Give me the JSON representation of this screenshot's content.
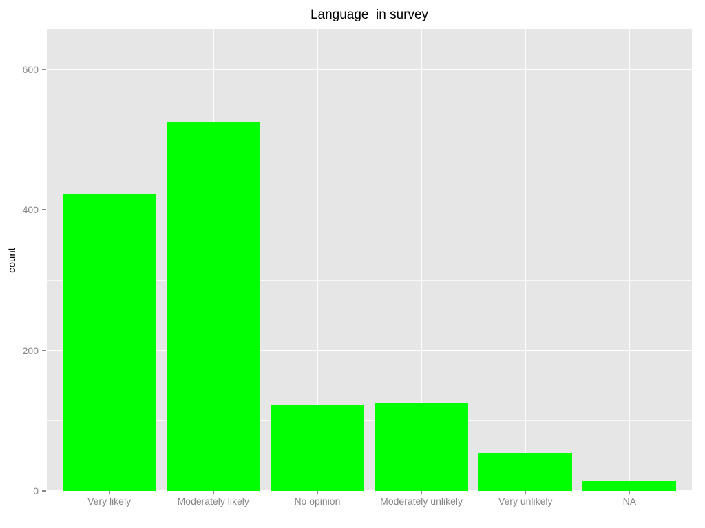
{
  "chart_data": {
    "type": "bar",
    "title": "Language  in survey",
    "xlabel": "",
    "ylabel": "count",
    "categories": [
      "Very likely",
      "Moderately likely",
      "No opinion",
      "Moderately unlikely",
      "Very unlikely",
      "NA"
    ],
    "values": [
      423,
      526,
      122,
      125,
      54,
      15
    ],
    "ylim": [
      0,
      658
    ],
    "y_major_ticks": [
      0,
      200,
      400,
      600
    ],
    "y_minor_gridlines": [
      100,
      300,
      500
    ],
    "grid": "horizontal-major-minor-and-vertical-category-major",
    "legend_position": "none",
    "bar_color": "#00FF00",
    "panel_background": "#E6E6E6",
    "gridline_color": "#FFFFFF",
    "axis_text_color": "#878787",
    "tick_mark_color": "#888888",
    "title_color": "#000000"
  }
}
